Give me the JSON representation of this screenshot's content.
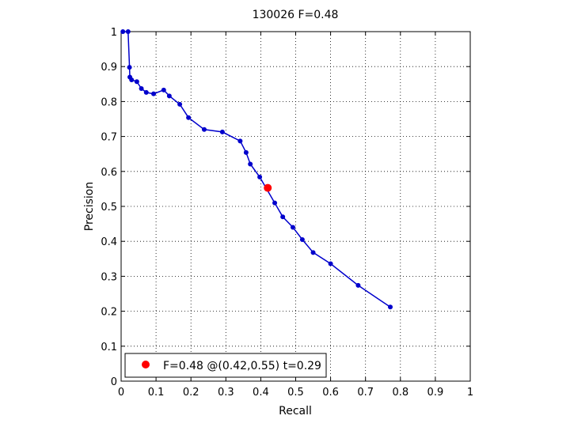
{
  "chart_data": {
    "type": "line",
    "title": "130026 F=0.48",
    "xlabel": "Recall",
    "ylabel": "Precision",
    "xlim": [
      0,
      1
    ],
    "ylim": [
      0,
      1
    ],
    "grid": true,
    "x_ticks": [
      "0",
      "0.1",
      "0.2",
      "0.3",
      "0.4",
      "0.5",
      "0.6",
      "0.7",
      "0.8",
      "0.9",
      "1"
    ],
    "y_ticks": [
      "0",
      "0.1",
      "0.2",
      "0.3",
      "0.4",
      "0.5",
      "0.6",
      "0.7",
      "0.8",
      "0.9",
      "1"
    ],
    "series": [
      {
        "color": "#0000cc",
        "marker": "circle",
        "points": [
          [
            0.005,
            1.0
          ],
          [
            0.02,
            1.0
          ],
          [
            0.024,
            0.898
          ],
          [
            0.025,
            0.87
          ],
          [
            0.03,
            0.862
          ],
          [
            0.045,
            0.857
          ],
          [
            0.058,
            0.837
          ],
          [
            0.072,
            0.826
          ],
          [
            0.093,
            0.822
          ],
          [
            0.122,
            0.833
          ],
          [
            0.138,
            0.816
          ],
          [
            0.168,
            0.792
          ],
          [
            0.193,
            0.754
          ],
          [
            0.238,
            0.72
          ],
          [
            0.29,
            0.713
          ],
          [
            0.341,
            0.687
          ],
          [
            0.358,
            0.654
          ],
          [
            0.37,
            0.621
          ],
          [
            0.397,
            0.584
          ],
          [
            0.44,
            0.51
          ],
          [
            0.463,
            0.47
          ],
          [
            0.492,
            0.44
          ],
          [
            0.519,
            0.405
          ],
          [
            0.55,
            0.368
          ],
          [
            0.6,
            0.336
          ],
          [
            0.679,
            0.274
          ],
          [
            0.771,
            0.212
          ]
        ]
      }
    ],
    "highlight": {
      "x": 0.42,
      "y": 0.553,
      "color": "#ff0000",
      "label": "F=0.48 @(0.42,0.55) t=0.29"
    },
    "legend_position": "bottom-left"
  }
}
